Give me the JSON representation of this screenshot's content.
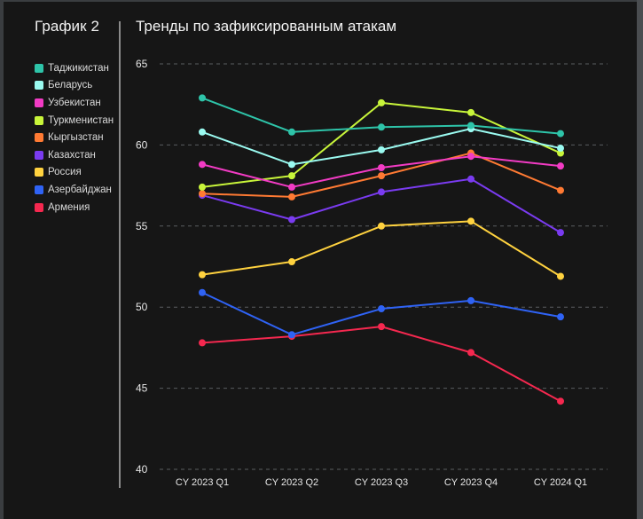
{
  "panel_title": "График 2",
  "chart_data": {
    "type": "line",
    "title": "Тренды по зафиксированным атакам",
    "xlabel": "",
    "ylabel": "",
    "categories": [
      "CY 2023 Q1",
      "CY 2023 Q2",
      "CY 2023 Q3",
      "CY 2023 Q4",
      "CY 2024 Q1"
    ],
    "ylim": [
      40,
      65
    ],
    "yticks": [
      40,
      45,
      50,
      55,
      60,
      65
    ],
    "grid": true,
    "legend_position": "left",
    "series": [
      {
        "name": "Таджикистан",
        "color": "#2ec4a9",
        "values": [
          62.9,
          60.8,
          61.1,
          61.2,
          60.7
        ]
      },
      {
        "name": "Беларусь",
        "color": "#9afaf0",
        "values": [
          60.8,
          58.8,
          59.7,
          61.0,
          59.8
        ]
      },
      {
        "name": "Узбекистан",
        "color": "#f23bc4",
        "values": [
          58.8,
          57.4,
          58.6,
          59.3,
          58.7
        ]
      },
      {
        "name": "Туркменистан",
        "color": "#c8f53a",
        "values": [
          57.4,
          58.1,
          62.6,
          62.0,
          59.5
        ]
      },
      {
        "name": "Кыргызстан",
        "color": "#ff7a33",
        "values": [
          57.0,
          56.8,
          58.1,
          59.5,
          57.2
        ]
      },
      {
        "name": "Казахстан",
        "color": "#7a3bf0",
        "values": [
          56.9,
          55.4,
          57.1,
          57.9,
          54.6
        ]
      },
      {
        "name": "Россия",
        "color": "#ffd23f",
        "values": [
          52.0,
          52.8,
          55.0,
          55.3,
          51.9
        ]
      },
      {
        "name": "Азербайджан",
        "color": "#2f63f5",
        "values": [
          50.9,
          48.3,
          49.9,
          50.4,
          49.4
        ]
      },
      {
        "name": "Армения",
        "color": "#f5284f",
        "values": [
          47.8,
          48.2,
          48.8,
          47.2,
          44.2
        ]
      }
    ]
  }
}
